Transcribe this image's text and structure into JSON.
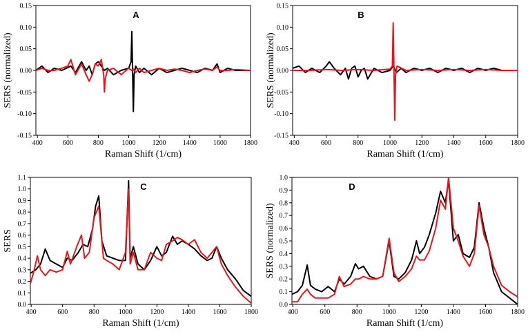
{
  "chart_data": [
    {
      "type": "line",
      "panel_label": "A",
      "xlabel": "Raman Shift (1/cm)",
      "ylabel": "SERS (normalized)",
      "xlim": [
        390,
        1800
      ],
      "ylim": [
        -0.15,
        0.15
      ],
      "xticks": [
        "400",
        "600",
        "800",
        "1000",
        "1200",
        "1400",
        "1600",
        "1800"
      ],
      "yticks": [
        "-0.15",
        "-0.10",
        "-0.05",
        "0.00",
        "0.05",
        "0.10",
        "0.15"
      ],
      "grid": false,
      "colors": [
        "#000000",
        "#e8141b"
      ],
      "series": [
        {
          "x": [
            390,
            430,
            470,
            510,
            560,
            620,
            650,
            690,
            720,
            740,
            760,
            780,
            800,
            820,
            840,
            860,
            900,
            950,
            1000,
            1015,
            1020,
            1025,
            1030,
            1035,
            1045,
            1070,
            1100,
            1150,
            1200,
            1250,
            1300,
            1350,
            1400,
            1450,
            1500,
            1550,
            1580,
            1600,
            1650,
            1700,
            1800
          ],
          "y": [
            0.0,
            0.01,
            -0.005,
            0.005,
            0.0,
            0.01,
            -0.005,
            0.02,
            0.0,
            0.01,
            -0.01,
            0.015,
            0.02,
            0.01,
            0.0,
            0.005,
            -0.01,
            0.0,
            0.005,
            0.02,
            0.09,
            0.0,
            -0.095,
            -0.01,
            0.01,
            -0.005,
            0.005,
            -0.01,
            0.005,
            -0.005,
            0.0,
            0.005,
            0.0,
            -0.005,
            0.005,
            0.0,
            0.015,
            -0.005,
            0.005,
            0.0,
            0.0
          ]
        },
        {
          "x": [
            390,
            430,
            470,
            510,
            560,
            600,
            620,
            650,
            690,
            720,
            740,
            760,
            780,
            800,
            820,
            835,
            840,
            845,
            860,
            900,
            950,
            1000,
            1020,
            1030,
            1045,
            1070,
            1100,
            1150,
            1200,
            1250,
            1300,
            1350,
            1400,
            1450,
            1500,
            1550,
            1580,
            1600,
            1650,
            1700,
            1800
          ],
          "y": [
            0.0,
            0.005,
            0.0,
            0.0,
            0.005,
            0.01,
            0.025,
            -0.01,
            0.015,
            -0.01,
            -0.025,
            -0.01,
            0.015,
            0.01,
            0.025,
            -0.01,
            -0.05,
            -0.02,
            0.0,
            0.005,
            -0.01,
            0.005,
            0.0,
            0.003,
            -0.005,
            0.005,
            -0.005,
            0.0,
            0.005,
            0.0,
            0.003,
            0.0,
            -0.005,
            0.0,
            0.003,
            0.0,
            0.008,
            0.0,
            0.0,
            0.002,
            0.0
          ]
        }
      ]
    },
    {
      "type": "line",
      "panel_label": "B",
      "xlabel": "Raman Shift (1/cm)",
      "ylabel": "SERS (normalized)",
      "xlim": [
        390,
        1800
      ],
      "ylim": [
        -0.15,
        0.15
      ],
      "xticks": [
        "400",
        "600",
        "800",
        "1000",
        "1200",
        "1400",
        "1600",
        "1800"
      ],
      "yticks": [
        "-0.15",
        "-0.10",
        "-0.05",
        "0.00",
        "0.05",
        "0.10",
        "0.15"
      ],
      "grid": false,
      "colors": [
        "#000000",
        "#e8141b"
      ],
      "series": [
        {
          "x": [
            390,
            430,
            470,
            510,
            560,
            600,
            620,
            650,
            690,
            720,
            740,
            760,
            780,
            800,
            820,
            840,
            860,
            900,
            950,
            1000,
            1020,
            1040,
            1070,
            1100,
            1150,
            1200,
            1250,
            1300,
            1350,
            1400,
            1450,
            1500,
            1550,
            1600,
            1650,
            1700,
            1800
          ],
          "y": [
            0.005,
            0.01,
            -0.005,
            0.005,
            -0.005,
            0.01,
            0.02,
            0.005,
            -0.01,
            0.005,
            -0.02,
            0.005,
            0.01,
            -0.015,
            0.0,
            0.005,
            -0.02,
            0.005,
            -0.005,
            0.0,
            0.01,
            -0.005,
            0.005,
            -0.005,
            0.005,
            0.0,
            0.005,
            -0.005,
            0.005,
            0.0,
            0.005,
            -0.005,
            0.005,
            0.0,
            0.005,
            0.0,
            0.0
          ]
        },
        {
          "x": [
            390,
            500,
            600,
            700,
            800,
            900,
            1000,
            1015,
            1020,
            1025,
            1030,
            1035,
            1045,
            1100,
            1200,
            1300,
            1400,
            1500,
            1600,
            1700,
            1800
          ],
          "y": [
            0.0,
            0.0,
            0.002,
            0.0,
            0.002,
            0.0,
            0.003,
            0.01,
            0.11,
            0.0,
            -0.115,
            -0.01,
            0.01,
            0.0,
            0.002,
            0.0,
            0.002,
            0.0,
            0.002,
            0.0,
            0.0
          ]
        }
      ]
    },
    {
      "type": "line",
      "panel_label": "C",
      "xlabel": "Raman Shift (1/cm)",
      "ylabel": "SERS",
      "xlim": [
        395,
        1800
      ],
      "ylim": [
        0.0,
        1.1
      ],
      "xticks": [
        "400",
        "600",
        "800",
        "1000",
        "1200",
        "1400",
        "1600",
        "1800"
      ],
      "yticks": [
        "0.0",
        "0.1",
        "0.2",
        "0.3",
        "0.4",
        "0.5",
        "0.6",
        "0.7",
        "0.8",
        "0.9",
        "1.0",
        "1.1"
      ],
      "grid": false,
      "colors": [
        "#000000",
        "#e8141b"
      ],
      "series": [
        {
          "x": [
            395,
            430,
            460,
            490,
            520,
            560,
            600,
            630,
            660,
            700,
            730,
            760,
            790,
            810,
            830,
            850,
            880,
            920,
            960,
            1000,
            1020,
            1030,
            1050,
            1080,
            1120,
            1160,
            1200,
            1230,
            1260,
            1300,
            1330,
            1360,
            1400,
            1440,
            1480,
            1520,
            1550,
            1580,
            1610,
            1650,
            1700,
            1750,
            1800
          ],
          "y": [
            0.27,
            0.3,
            0.35,
            0.48,
            0.38,
            0.35,
            0.32,
            0.4,
            0.38,
            0.45,
            0.52,
            0.5,
            0.65,
            0.85,
            0.94,
            0.55,
            0.42,
            0.4,
            0.38,
            0.38,
            1.07,
            0.4,
            0.5,
            0.35,
            0.3,
            0.38,
            0.5,
            0.42,
            0.45,
            0.59,
            0.52,
            0.55,
            0.52,
            0.48,
            0.42,
            0.38,
            0.4,
            0.5,
            0.4,
            0.3,
            0.22,
            0.12,
            0.07
          ]
        },
        {
          "x": [
            395,
            420,
            440,
            460,
            490,
            520,
            560,
            600,
            630,
            650,
            690,
            720,
            740,
            770,
            800,
            830,
            860,
            880,
            920,
            960,
            1000,
            1020,
            1030,
            1050,
            1080,
            1120,
            1160,
            1200,
            1230,
            1260,
            1300,
            1330,
            1360,
            1400,
            1440,
            1480,
            1520,
            1550,
            1580,
            1610,
            1650,
            1700,
            1750,
            1800
          ],
          "y": [
            0.18,
            0.3,
            0.42,
            0.3,
            0.25,
            0.3,
            0.28,
            0.3,
            0.46,
            0.35,
            0.5,
            0.6,
            0.4,
            0.45,
            0.75,
            0.85,
            0.4,
            0.38,
            0.35,
            0.3,
            0.45,
            1.0,
            0.35,
            0.45,
            0.3,
            0.3,
            0.45,
            0.4,
            0.38,
            0.52,
            0.55,
            0.58,
            0.56,
            0.52,
            0.56,
            0.45,
            0.4,
            0.45,
            0.5,
            0.35,
            0.25,
            0.15,
            0.07,
            0.01
          ]
        }
      ]
    },
    {
      "type": "line",
      "panel_label": "D",
      "xlabel": "Raman Shift (1/cm)",
      "ylabel": "SERS (normalized)",
      "xlim": [
        395,
        1800
      ],
      "ylim": [
        0.0,
        1.0
      ],
      "xticks": [
        "400",
        "600",
        "800",
        "1000",
        "1200",
        "1400",
        "1600",
        "1800"
      ],
      "yticks": [
        "0.0",
        "0.1",
        "0.2",
        "0.3",
        "0.4",
        "0.5",
        "0.6",
        "0.7",
        "0.8",
        "0.9",
        "1.0"
      ],
      "grid": false,
      "colors": [
        "#000000",
        "#e8141b"
      ],
      "series": [
        {
          "x": [
            395,
            430,
            460,
            490,
            510,
            540,
            580,
            620,
            660,
            690,
            720,
            760,
            790,
            810,
            840,
            880,
            920,
            960,
            1000,
            1030,
            1060,
            1100,
            1140,
            1170,
            1190,
            1220,
            1250,
            1290,
            1320,
            1350,
            1370,
            1400,
            1430,
            1460,
            1500,
            1530,
            1560,
            1590,
            1620,
            1650,
            1700,
            1750,
            1800
          ],
          "y": [
            0.08,
            0.1,
            0.15,
            0.31,
            0.15,
            0.12,
            0.1,
            0.14,
            0.1,
            0.2,
            0.16,
            0.22,
            0.32,
            0.28,
            0.3,
            0.22,
            0.2,
            0.22,
            0.5,
            0.22,
            0.2,
            0.25,
            0.35,
            0.5,
            0.4,
            0.45,
            0.55,
            0.72,
            0.89,
            0.8,
            0.98,
            0.5,
            0.55,
            0.4,
            0.37,
            0.45,
            0.8,
            0.6,
            0.45,
            0.25,
            0.1,
            0.05,
            0.0
          ]
        },
        {
          "x": [
            395,
            430,
            460,
            490,
            510,
            540,
            580,
            620,
            660,
            690,
            720,
            760,
            790,
            810,
            840,
            880,
            920,
            960,
            1000,
            1030,
            1060,
            1100,
            1140,
            1170,
            1190,
            1220,
            1250,
            1290,
            1320,
            1350,
            1370,
            1400,
            1430,
            1460,
            1500,
            1530,
            1560,
            1590,
            1620,
            1650,
            1700,
            1750,
            1800
          ],
          "y": [
            0.02,
            0.02,
            0.08,
            0.12,
            0.08,
            0.05,
            0.05,
            0.05,
            0.08,
            0.22,
            0.14,
            0.16,
            0.2,
            0.2,
            0.22,
            0.2,
            0.2,
            0.22,
            0.52,
            0.25,
            0.18,
            0.22,
            0.28,
            0.38,
            0.35,
            0.35,
            0.42,
            0.6,
            0.82,
            0.75,
            1.0,
            0.6,
            0.5,
            0.38,
            0.3,
            0.4,
            0.78,
            0.55,
            0.45,
            0.3,
            0.15,
            0.1,
            0.06
          ]
        }
      ]
    }
  ]
}
